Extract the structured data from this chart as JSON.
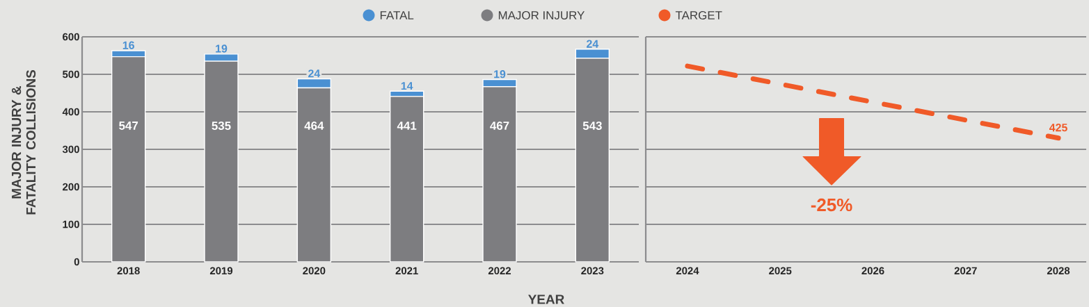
{
  "chart_data": [
    {
      "type": "bar",
      "stacked": true,
      "ylabel": "MAJOR INJURY & FATALITY COLLISIONS",
      "xlabel": "YEAR",
      "categories": [
        "2018",
        "2019",
        "2020",
        "2021",
        "2022",
        "2023"
      ],
      "series": [
        {
          "name": "MAJOR INJURY",
          "color": "#7d7d80",
          "values": [
            547,
            535,
            464,
            441,
            467,
            543
          ]
        },
        {
          "name": "FATAL",
          "color": "#4a90d2",
          "values": [
            16,
            19,
            24,
            14,
            19,
            24
          ]
        }
      ],
      "ylim": [
        0,
        600
      ],
      "yticks": [
        0,
        100,
        200,
        300,
        400,
        500,
        600
      ],
      "grid": "y",
      "legend": "top",
      "data_labels": true
    },
    {
      "type": "line",
      "categories": [
        "2024",
        "2025",
        "2026",
        "2027",
        "2028"
      ],
      "series": [
        {
          "name": "TARGET",
          "color": "#f05a28",
          "values": [
            522,
            474,
            426,
            378,
            330
          ]
        }
      ],
      "ylim": [
        0,
        600
      ],
      "yticks": [
        0,
        100,
        200,
        300,
        400,
        500,
        600
      ],
      "grid": "y",
      "legend": "top",
      "tick_labels": "x",
      "line_style": "dashed",
      "marker": "none",
      "annotations": [
        "425",
        "-25%"
      ]
    }
  ]
}
